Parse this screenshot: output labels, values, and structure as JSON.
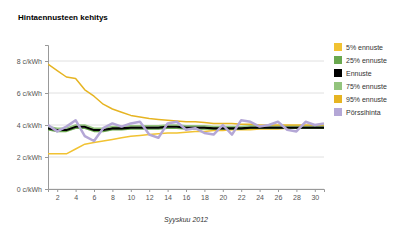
{
  "chart_data": {
    "type": "line",
    "title": "Hintaennusteen kehitys",
    "x_label": "Syyskuu 2012",
    "x": [
      1,
      2,
      3,
      4,
      5,
      6,
      7,
      8,
      9,
      10,
      11,
      12,
      13,
      14,
      15,
      16,
      17,
      18,
      19,
      20,
      21,
      22,
      23,
      24,
      25,
      26,
      27,
      28,
      29,
      30,
      31
    ],
    "xlim": [
      1,
      31
    ],
    "xticks": [
      2,
      4,
      6,
      8,
      10,
      12,
      14,
      16,
      18,
      20,
      22,
      24,
      26,
      28,
      30
    ],
    "ylim": [
      0,
      9
    ],
    "yticks": [
      {
        "value": 0,
        "label": "0 c/kWh"
      },
      {
        "value": 2,
        "label": "2 c/kWh"
      },
      {
        "value": 4,
        "label": "4 c/kWh"
      },
      {
        "value": 6,
        "label": "6 c/kWh"
      },
      {
        "value": 8,
        "label": "8 c/kWh"
      }
    ],
    "grid": true,
    "legend": "right",
    "series": [
      {
        "name": "5% ennuste",
        "color": "#f1c232",
        "values": [
          2.2,
          2.2,
          2.2,
          2.5,
          2.8,
          2.9,
          3.0,
          3.1,
          3.2,
          3.3,
          3.35,
          3.4,
          3.45,
          3.5,
          3.5,
          3.55,
          3.6,
          3.6,
          3.65,
          3.65,
          3.7,
          3.7,
          3.7,
          3.75,
          3.75,
          3.75,
          3.8,
          3.8,
          3.8,
          3.8,
          3.8
        ]
      },
      {
        "name": "25% ennuste",
        "color": "#6aa84f",
        "values": [
          3.7,
          3.6,
          3.6,
          3.8,
          3.8,
          3.6,
          3.6,
          3.7,
          3.7,
          3.75,
          3.75,
          3.75,
          3.75,
          3.8,
          3.8,
          3.75,
          3.75,
          3.75,
          3.75,
          3.75,
          3.75,
          3.75,
          3.8,
          3.8,
          3.8,
          3.8,
          3.8,
          3.8,
          3.8,
          3.8,
          3.8
        ]
      },
      {
        "name": "Ennuste",
        "color": "#000000",
        "values": [
          3.8,
          3.7,
          3.7,
          3.9,
          3.9,
          3.7,
          3.7,
          3.8,
          3.8,
          3.85,
          3.85,
          3.85,
          3.85,
          3.9,
          3.9,
          3.85,
          3.85,
          3.85,
          3.8,
          3.8,
          3.8,
          3.8,
          3.85,
          3.85,
          3.85,
          3.85,
          3.85,
          3.85,
          3.85,
          3.85,
          3.85
        ]
      },
      {
        "name": "75% ennuste",
        "color": "#93c47d",
        "values": [
          3.9,
          3.8,
          3.8,
          4.0,
          4.0,
          3.8,
          3.8,
          3.9,
          3.9,
          3.95,
          3.95,
          3.95,
          3.95,
          4.0,
          4.0,
          3.95,
          3.95,
          3.95,
          3.9,
          3.9,
          3.9,
          3.9,
          3.95,
          3.95,
          3.95,
          3.95,
          3.95,
          3.95,
          3.95,
          3.95,
          3.95
        ]
      },
      {
        "name": "95% ennuste",
        "color": "#e6b422",
        "values": [
          7.8,
          7.4,
          7.0,
          6.9,
          6.2,
          5.8,
          5.3,
          5.0,
          4.8,
          4.6,
          4.5,
          4.4,
          4.35,
          4.3,
          4.25,
          4.2,
          4.2,
          4.15,
          4.1,
          4.1,
          4.1,
          4.05,
          4.05,
          4.0,
          4.0,
          4.0,
          4.0,
          4.0,
          4.0,
          4.0,
          4.0
        ]
      },
      {
        "name": "Pörssihinta",
        "color": "#b4a7d6",
        "values": [
          4.0,
          3.6,
          3.9,
          4.3,
          3.3,
          3.0,
          3.8,
          4.1,
          3.9,
          4.1,
          4.2,
          3.4,
          3.2,
          4.1,
          4.2,
          3.7,
          3.8,
          3.5,
          3.4,
          4.0,
          3.4,
          4.3,
          4.2,
          3.9,
          4.0,
          4.2,
          3.7,
          3.6,
          4.2,
          4.0,
          4.1
        ]
      }
    ]
  }
}
